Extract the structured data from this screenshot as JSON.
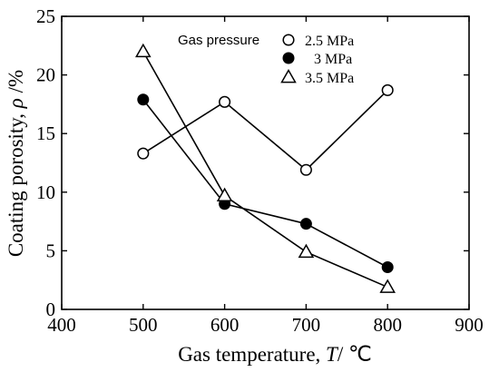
{
  "chart_data": {
    "type": "line",
    "xlabel": "Gas temperature, ",
    "xlabel_var": "T",
    "xlabel_unit": "/ ℃",
    "ylabel": "Coating porosity, ",
    "ylabel_var": "ρ",
    "ylabel_unit": " /%",
    "xlim": [
      400,
      900
    ],
    "ylim": [
      0,
      25
    ],
    "xticks": [
      400,
      500,
      600,
      700,
      800,
      900
    ],
    "yticks": [
      0,
      5,
      10,
      15,
      20,
      25
    ],
    "grid": false,
    "legend": {
      "title": "Gas pressure",
      "placement": "top-right"
    },
    "series": [
      {
        "name": "2.5 MPa",
        "marker": "circle-open",
        "x": [
          500,
          600,
          700,
          800
        ],
        "y": [
          13.3,
          17.7,
          11.9,
          18.7
        ]
      },
      {
        "name": "3 MPa",
        "marker": "circle-filled",
        "x": [
          500,
          600,
          700,
          800
        ],
        "y": [
          17.9,
          9.0,
          7.3,
          3.6
        ]
      },
      {
        "name": "3.5 MPa",
        "marker": "triangle-open",
        "x": [
          500,
          600,
          700,
          800
        ],
        "y": [
          22.0,
          9.7,
          4.9,
          1.9
        ]
      }
    ]
  }
}
